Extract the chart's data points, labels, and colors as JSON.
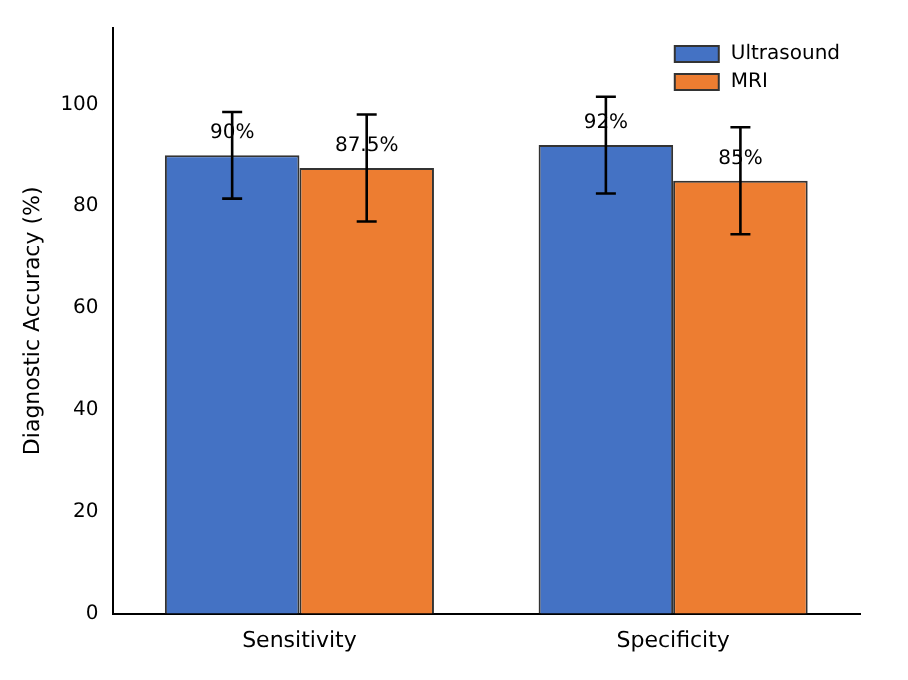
{
  "chart_data": {
    "type": "bar",
    "ylabel": "Diagnostic Accuracy (%)",
    "categories": [
      "Sensitivity",
      "Specificity"
    ],
    "series": [
      {
        "name": "Ultrasound",
        "color": "#4472c4",
        "values": [
          90,
          92
        ],
        "errors": [
          8.5,
          9.5
        ],
        "value_labels": [
          "90%",
          "92%"
        ]
      },
      {
        "name": "MRI",
        "color": "#ed7d31",
        "values": [
          87.5,
          85
        ],
        "errors": [
          10.5,
          10.5
        ],
        "value_labels": [
          "87.5%",
          "85%"
        ]
      }
    ],
    "ylim": [
      0,
      115
    ],
    "yticks": [
      0,
      20,
      40,
      60,
      80,
      100
    ],
    "grid": false,
    "legend": "top right"
  }
}
